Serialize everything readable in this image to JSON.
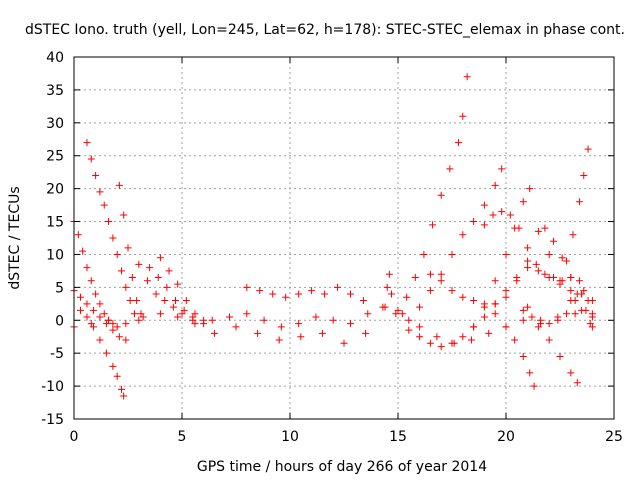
{
  "chart_data": {
    "type": "scatter",
    "title": "dSTEC Iono. truth (yell, Lon=245, Lat=62, h=178): STEC-STEC_elemax in phase cont.",
    "xlabel": "GPS time / hours of day 266 of year 2014",
    "ylabel": "dSTEC  / TECUs",
    "xlim": [
      0,
      25
    ],
    "ylim": [
      -15,
      40
    ],
    "x_ticks": [
      "0",
      "5",
      "10",
      "15",
      "20",
      "25"
    ],
    "y_ticks": [
      "-15",
      "-10",
      "-5",
      "0",
      "5",
      "10",
      "15",
      "20",
      "25",
      "30",
      "35",
      "40"
    ],
    "grid": true,
    "marker": "+",
    "color": "#ff0000",
    "series": [
      {
        "values": [
          [
            0.0,
            15.0
          ],
          [
            0.2,
            13.0
          ],
          [
            0.4,
            10.5
          ],
          [
            0.6,
            8.0
          ],
          [
            0.8,
            6.0
          ],
          [
            1.0,
            4.0
          ],
          [
            1.2,
            2.5
          ],
          [
            1.4,
            1.0
          ],
          [
            1.6,
            0.0
          ],
          [
            1.8,
            -0.5
          ],
          [
            2.0,
            -1.0
          ]
        ]
      },
      {
        "values": [
          [
            0.0,
            4.5
          ],
          [
            0.3,
            3.5
          ],
          [
            0.6,
            2.5
          ],
          [
            0.9,
            1.5
          ],
          [
            1.2,
            0.5
          ],
          [
            1.5,
            -0.5
          ],
          [
            1.8,
            -1.5
          ],
          [
            2.1,
            -2.5
          ],
          [
            2.4,
            -3.0
          ]
        ]
      },
      {
        "values": [
          [
            0.6,
            27.0
          ],
          [
            0.8,
            24.5
          ],
          [
            1.0,
            22.0
          ],
          [
            1.2,
            19.5
          ],
          [
            1.4,
            17.5
          ],
          [
            1.6,
            15.0
          ],
          [
            1.8,
            12.5
          ],
          [
            2.0,
            10.0
          ],
          [
            2.2,
            7.5
          ],
          [
            2.4,
            5.0
          ],
          [
            2.6,
            3.0
          ],
          [
            2.8,
            1.0
          ],
          [
            3.0,
            0.0
          ]
        ]
      },
      {
        "values": [
          [
            0.3,
            1.5
          ],
          [
            0.6,
            0.5
          ],
          [
            0.9,
            -1.0
          ],
          [
            1.2,
            -3.0
          ],
          [
            1.5,
            -5.0
          ],
          [
            1.8,
            -7.0
          ],
          [
            2.0,
            -8.5
          ],
          [
            2.2,
            -10.5
          ],
          [
            2.3,
            -11.5
          ]
        ]
      },
      {
        "values": [
          [
            2.1,
            20.5
          ],
          [
            2.3,
            16.0
          ],
          [
            2.5,
            11.0
          ],
          [
            2.7,
            6.5
          ],
          [
            2.9,
            3.0
          ],
          [
            3.1,
            1.0
          ]
        ]
      },
      {
        "values": [
          [
            3.0,
            8.5
          ],
          [
            3.4,
            6.0
          ],
          [
            3.8,
            4.0
          ],
          [
            4.2,
            3.0
          ],
          [
            4.6,
            2.0
          ],
          [
            5.0,
            1.0
          ],
          [
            5.5,
            0.0
          ],
          [
            6.0,
            -0.5
          ]
        ]
      },
      {
        "values": [
          [
            3.5,
            8.0
          ],
          [
            3.9,
            6.5
          ],
          [
            4.3,
            5.0
          ],
          [
            4.7,
            3.0
          ],
          [
            5.1,
            1.5
          ],
          [
            5.5,
            0.5
          ]
        ]
      },
      {
        "values": [
          [
            4.0,
            9.5
          ],
          [
            4.4,
            7.5
          ],
          [
            4.8,
            5.5
          ],
          [
            5.2,
            3.0
          ],
          [
            5.6,
            1.0
          ],
          [
            6.0,
            0.0
          ]
        ]
      },
      {
        "values": [
          [
            0.0,
            -1.0
          ],
          [
            0.8,
            -0.5
          ],
          [
            1.6,
            0.0
          ],
          [
            2.4,
            -0.5
          ],
          [
            3.2,
            0.5
          ],
          [
            4.0,
            1.0
          ],
          [
            4.8,
            0.5
          ],
          [
            5.6,
            -0.5
          ],
          [
            6.4,
            0.0
          ],
          [
            7.2,
            0.5
          ],
          [
            8.0,
            1.0
          ],
          [
            8.8,
            0.0
          ],
          [
            9.6,
            -1.0
          ],
          [
            10.4,
            -0.5
          ],
          [
            11.2,
            0.5
          ],
          [
            12.0,
            0.0
          ],
          [
            12.8,
            -0.5
          ],
          [
            13.6,
            1.0
          ],
          [
            14.4,
            2.0
          ],
          [
            15.2,
            1.0
          ],
          [
            16.0,
            -1.0
          ],
          [
            16.8,
            -2.5
          ],
          [
            17.6,
            -3.5
          ],
          [
            18.4,
            -3.0
          ],
          [
            19.2,
            -2.0
          ],
          [
            20.0,
            -1.0
          ],
          [
            20.8,
            0.0
          ],
          [
            21.6,
            -0.5
          ],
          [
            22.4,
            0.5
          ],
          [
            23.2,
            1.0
          ],
          [
            24.0,
            0.5
          ]
        ]
      },
      {
        "values": [
          [
            6.5,
            -2.0
          ],
          [
            7.5,
            -1.0
          ],
          [
            8.5,
            -2.0
          ],
          [
            9.5,
            -3.0
          ],
          [
            10.5,
            -2.5
          ],
          [
            11.5,
            -2.0
          ],
          [
            12.5,
            -3.5
          ],
          [
            13.5,
            -2.0
          ]
        ]
      },
      {
        "values": [
          [
            8.0,
            5.0
          ],
          [
            8.6,
            4.5
          ],
          [
            9.2,
            4.0
          ],
          [
            9.8,
            3.5
          ],
          [
            10.4,
            4.0
          ],
          [
            11.0,
            4.5
          ],
          [
            11.6,
            4.0
          ],
          [
            12.2,
            5.0
          ],
          [
            12.8,
            4.0
          ],
          [
            13.4,
            3.0
          ]
        ]
      },
      {
        "values": [
          [
            14.3,
            2.0
          ],
          [
            14.5,
            5.0
          ],
          [
            14.6,
            7.0
          ],
          [
            14.7,
            4.0
          ],
          [
            14.9,
            1.0
          ]
        ]
      },
      {
        "values": [
          [
            15.0,
            1.5
          ],
          [
            15.4,
            3.5
          ],
          [
            15.8,
            6.5
          ],
          [
            16.2,
            10.0
          ],
          [
            16.6,
            14.5
          ],
          [
            17.0,
            19.0
          ],
          [
            17.4,
            23.0
          ],
          [
            17.8,
            27.0
          ],
          [
            18.0,
            31.0
          ],
          [
            18.2,
            37.0
          ]
        ]
      },
      {
        "values": [
          [
            15.5,
            0.0
          ],
          [
            16.0,
            2.0
          ],
          [
            16.5,
            4.5
          ],
          [
            17.0,
            7.0
          ],
          [
            17.5,
            10.0
          ],
          [
            18.0,
            13.0
          ],
          [
            18.5,
            15.0
          ],
          [
            19.0,
            17.5
          ],
          [
            19.5,
            20.5
          ],
          [
            19.8,
            23.0
          ]
        ]
      },
      {
        "values": [
          [
            15.5,
            -1.5
          ],
          [
            16.0,
            -2.5
          ],
          [
            16.5,
            -3.5
          ],
          [
            17.0,
            -4.0
          ],
          [
            17.5,
            -3.5
          ],
          [
            18.0,
            -2.5
          ],
          [
            18.5,
            -1.0
          ],
          [
            19.0,
            0.5
          ],
          [
            19.5,
            2.5
          ],
          [
            20.0,
            4.5
          ],
          [
            20.5,
            6.5
          ],
          [
            21.0,
            8.0
          ],
          [
            21.5,
            7.5
          ],
          [
            22.0,
            6.5
          ],
          [
            22.5,
            5.5
          ],
          [
            23.0,
            4.5
          ],
          [
            23.5,
            4.0
          ],
          [
            23.8,
            3.0
          ]
        ]
      },
      {
        "values": [
          [
            16.5,
            7.0
          ],
          [
            17.0,
            6.0
          ],
          [
            17.5,
            4.5
          ],
          [
            18.0,
            3.5
          ],
          [
            18.5,
            3.0
          ],
          [
            19.0,
            2.5
          ],
          [
            19.5,
            2.5
          ],
          [
            20.0,
            3.5
          ],
          [
            20.5,
            6.0
          ],
          [
            21.0,
            9.0
          ],
          [
            21.5,
            13.5
          ],
          [
            22.0,
            10.0
          ],
          [
            22.5,
            6.0
          ],
          [
            23.0,
            3.0
          ],
          [
            23.5,
            1.5
          ],
          [
            24.0,
            1.0
          ]
        ]
      },
      {
        "values": [
          [
            18.5,
            -1.0
          ],
          [
            19.0,
            2.0
          ],
          [
            19.5,
            6.0
          ],
          [
            20.0,
            10.0
          ],
          [
            20.4,
            14.0
          ],
          [
            20.8,
            18.0
          ],
          [
            21.1,
            20.0
          ]
        ]
      },
      {
        "values": [
          [
            19.0,
            14.5
          ],
          [
            19.4,
            16.0
          ],
          [
            19.8,
            16.5
          ],
          [
            20.2,
            16.0
          ],
          [
            20.6,
            14.0
          ],
          [
            21.0,
            11.0
          ],
          [
            21.4,
            8.5
          ],
          [
            21.8,
            7.0
          ],
          [
            22.2,
            6.5
          ],
          [
            22.6,
            6.0
          ],
          [
            23.0,
            6.5
          ],
          [
            23.4,
            6.0
          ]
        ]
      },
      {
        "values": [
          [
            19.5,
            1.0
          ],
          [
            20.0,
            -1.0
          ],
          [
            20.4,
            -3.0
          ],
          [
            20.8,
            -5.5
          ],
          [
            21.1,
            -8.0
          ],
          [
            21.3,
            -10.0
          ]
        ]
      },
      {
        "values": [
          [
            21.0,
            2.0
          ],
          [
            21.5,
            -1.0
          ],
          [
            22.0,
            -3.0
          ],
          [
            22.5,
            -5.5
          ],
          [
            23.0,
            -8.0
          ],
          [
            23.3,
            -9.5
          ]
        ]
      },
      {
        "values": [
          [
            20.8,
            1.5
          ],
          [
            21.2,
            0.5
          ],
          [
            21.6,
            0.0
          ],
          [
            22.0,
            -0.5
          ],
          [
            22.4,
            0.0
          ],
          [
            22.8,
            1.0
          ],
          [
            23.2,
            3.0
          ],
          [
            23.6,
            4.5
          ],
          [
            24.0,
            3.0
          ]
        ]
      },
      {
        "values": [
          [
            21.8,
            14.0
          ],
          [
            22.2,
            12.0
          ],
          [
            22.6,
            9.5
          ],
          [
            23.0,
            6.5
          ],
          [
            23.3,
            4.0
          ]
        ]
      },
      {
        "values": [
          [
            22.8,
            9.0
          ],
          [
            23.1,
            13.0
          ],
          [
            23.4,
            18.0
          ],
          [
            23.6,
            22.0
          ],
          [
            23.8,
            26.0
          ]
        ]
      },
      {
        "values": [
          [
            23.5,
            4.0
          ],
          [
            23.7,
            1.5
          ],
          [
            23.9,
            -0.5
          ],
          [
            24.0,
            -1.0
          ]
        ]
      }
    ]
  }
}
